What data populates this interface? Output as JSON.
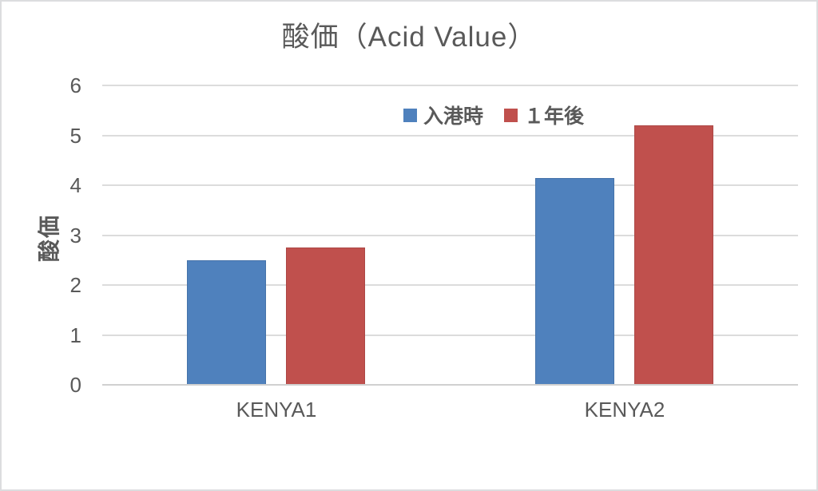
{
  "page": {
    "background": "#ffffff",
    "border_color": "#dcdddf",
    "text_color": "#595959"
  },
  "chart_data": {
    "type": "bar",
    "title": "酸価（Acid Value）",
    "categories": [
      "KENYA1",
      "KENYA2"
    ],
    "series": [
      {
        "name": "入港時",
        "color": "#4F81BD",
        "values": [
          2.5,
          4.15
        ]
      },
      {
        "name": "１年後",
        "color": "#C0504D",
        "values": [
          2.75,
          5.2
        ]
      }
    ],
    "xlabel": "",
    "ylabel": "酸価",
    "ylim": [
      0,
      6
    ],
    "ytick_step": 1,
    "yticks": [
      0,
      1,
      2,
      3,
      4,
      5,
      6
    ],
    "grid": true,
    "legend_position": "top-center",
    "gridline_color": "#dcdcdc",
    "axis_line_color": "#d0d0d0",
    "text_color": "#595959"
  }
}
